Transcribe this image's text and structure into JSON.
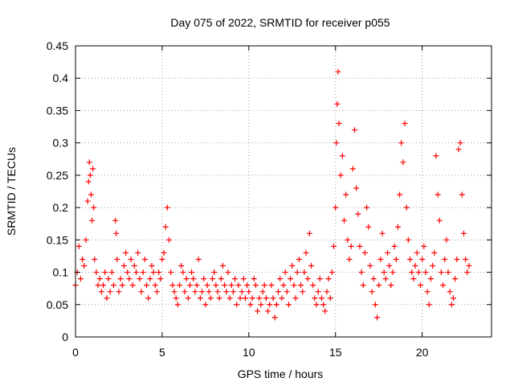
{
  "chart_data": {
    "type": "scatter",
    "title": "Day 075 of 2022, SRMTID for receiver p055",
    "xlabel": "GPS time / hours",
    "ylabel": "SRMTID / TECUs",
    "xlim": [
      0,
      24
    ],
    "ylim": [
      0,
      0.45
    ],
    "xticks": [
      0,
      5,
      10,
      15,
      20
    ],
    "xtick_labels": [
      "0",
      "5",
      "10",
      "15",
      "20"
    ],
    "yticks": [
      0,
      0.05,
      0.1,
      0.15,
      0.2,
      0.25,
      0.3,
      0.35,
      0.4,
      0.45
    ],
    "ytick_labels": [
      "0",
      "0.05",
      "0.1",
      "0.15",
      "0.2",
      "0.25",
      "0.3",
      "0.35",
      "0.4",
      "0.45"
    ],
    "grid": true,
    "marker": "+",
    "color": "#ff0000",
    "series": [
      {
        "name": "p055",
        "x": [
          0.0,
          0.1,
          0.2,
          0.3,
          0.4,
          0.5,
          0.6,
          0.7,
          0.75,
          0.8,
          0.85,
          0.9,
          0.95,
          1.0,
          1.05,
          1.1,
          1.2,
          1.3,
          1.4,
          1.5,
          1.6,
          1.7,
          1.8,
          1.9,
          2.0,
          2.1,
          2.2,
          2.3,
          2.35,
          2.4,
          2.5,
          2.6,
          2.7,
          2.8,
          2.9,
          3.0,
          3.1,
          3.2,
          3.3,
          3.4,
          3.5,
          3.6,
          3.7,
          3.8,
          3.9,
          4.0,
          4.1,
          4.2,
          4.3,
          4.4,
          4.5,
          4.6,
          4.7,
          4.8,
          4.9,
          5.0,
          5.1,
          5.2,
          5.3,
          5.4,
          5.5,
          5.6,
          5.7,
          5.8,
          5.9,
          6.0,
          6.1,
          6.2,
          6.3,
          6.4,
          6.5,
          6.6,
          6.7,
          6.8,
          6.9,
          7.0,
          7.1,
          7.2,
          7.3,
          7.4,
          7.5,
          7.6,
          7.7,
          7.8,
          7.9,
          8.0,
          8.1,
          8.2,
          8.3,
          8.4,
          8.5,
          8.6,
          8.7,
          8.8,
          8.9,
          9.0,
          9.1,
          9.2,
          9.3,
          9.4,
          9.5,
          9.6,
          9.7,
          9.8,
          9.9,
          10.0,
          10.1,
          10.2,
          10.3,
          10.4,
          10.5,
          10.6,
          10.7,
          10.8,
          10.9,
          11.0,
          11.1,
          11.2,
          11.3,
          11.4,
          11.5,
          11.6,
          11.7,
          11.8,
          11.9,
          12.0,
          12.1,
          12.2,
          12.3,
          12.4,
          12.5,
          12.6,
          12.7,
          12.8,
          12.9,
          13.0,
          13.1,
          13.2,
          13.3,
          13.4,
          13.5,
          13.6,
          13.7,
          13.8,
          13.9,
          14.0,
          14.1,
          14.2,
          14.3,
          14.4,
          14.5,
          14.6,
          14.7,
          14.8,
          14.9,
          15.0,
          15.05,
          15.1,
          15.15,
          15.2,
          15.3,
          15.4,
          15.5,
          15.6,
          15.7,
          15.8,
          15.9,
          16.0,
          16.1,
          16.2,
          16.3,
          16.4,
          16.5,
          16.6,
          16.7,
          16.8,
          16.9,
          17.0,
          17.1,
          17.2,
          17.3,
          17.4,
          17.5,
          17.6,
          17.7,
          17.8,
          17.9,
          18.0,
          18.1,
          18.2,
          18.3,
          18.4,
          18.5,
          18.6,
          18.7,
          18.8,
          18.9,
          19.0,
          19.1,
          19.2,
          19.3,
          19.4,
          19.5,
          19.6,
          19.7,
          19.8,
          19.9,
          20.0,
          20.1,
          20.2,
          20.3,
          20.4,
          20.5,
          20.6,
          20.7,
          20.8,
          20.9,
          21.0,
          21.1,
          21.2,
          21.3,
          21.4,
          21.5,
          21.6,
          21.7,
          21.8,
          21.9,
          22.0,
          22.1,
          22.2,
          22.3,
          22.4,
          22.5,
          22.6,
          22.7
        ],
        "y": [
          0.08,
          0.1,
          0.14,
          0.09,
          0.12,
          0.11,
          0.15,
          0.21,
          0.24,
          0.27,
          0.25,
          0.22,
          0.18,
          0.26,
          0.2,
          0.12,
          0.1,
          0.08,
          0.09,
          0.07,
          0.08,
          0.1,
          0.06,
          0.09,
          0.07,
          0.1,
          0.08,
          0.18,
          0.16,
          0.12,
          0.07,
          0.09,
          0.08,
          0.11,
          0.13,
          0.1,
          0.09,
          0.12,
          0.08,
          0.11,
          0.1,
          0.13,
          0.09,
          0.07,
          0.1,
          0.12,
          0.08,
          0.06,
          0.09,
          0.11,
          0.1,
          0.08,
          0.07,
          0.1,
          0.09,
          0.12,
          0.13,
          0.17,
          0.2,
          0.15,
          0.1,
          0.08,
          0.07,
          0.06,
          0.05,
          0.08,
          0.11,
          0.1,
          0.07,
          0.09,
          0.06,
          0.08,
          0.1,
          0.09,
          0.07,
          0.08,
          0.12,
          0.06,
          0.07,
          0.09,
          0.05,
          0.08,
          0.07,
          0.06,
          0.09,
          0.1,
          0.08,
          0.07,
          0.06,
          0.09,
          0.11,
          0.08,
          0.07,
          0.1,
          0.06,
          0.08,
          0.07,
          0.09,
          0.05,
          0.08,
          0.06,
          0.07,
          0.09,
          0.06,
          0.08,
          0.07,
          0.05,
          0.06,
          0.09,
          0.08,
          0.04,
          0.06,
          0.05,
          0.07,
          0.08,
          0.06,
          0.04,
          0.05,
          0.08,
          0.06,
          0.03,
          0.05,
          0.07,
          0.09,
          0.06,
          0.08,
          0.1,
          0.07,
          0.05,
          0.09,
          0.11,
          0.08,
          0.06,
          0.1,
          0.12,
          0.08,
          0.07,
          0.1,
          0.13,
          0.09,
          0.16,
          0.11,
          0.08,
          0.06,
          0.05,
          0.07,
          0.09,
          0.06,
          0.05,
          0.04,
          0.07,
          0.09,
          0.06,
          0.1,
          0.14,
          0.2,
          0.3,
          0.36,
          0.41,
          0.33,
          0.25,
          0.28,
          0.18,
          0.22,
          0.15,
          0.12,
          0.14,
          0.26,
          0.32,
          0.23,
          0.19,
          0.14,
          0.1,
          0.08,
          0.13,
          0.2,
          0.17,
          0.11,
          0.07,
          0.09,
          0.05,
          0.03,
          0.08,
          0.12,
          0.16,
          0.1,
          0.09,
          0.13,
          0.11,
          0.08,
          0.1,
          0.14,
          0.12,
          0.17,
          0.22,
          0.3,
          0.27,
          0.33,
          0.2,
          0.15,
          0.12,
          0.1,
          0.09,
          0.11,
          0.13,
          0.1,
          0.08,
          0.12,
          0.14,
          0.1,
          0.07,
          0.05,
          0.09,
          0.11,
          0.13,
          0.28,
          0.22,
          0.18,
          0.1,
          0.08,
          0.12,
          0.15,
          0.1,
          0.07,
          0.05,
          0.06,
          0.09,
          0.12,
          0.29,
          0.3,
          0.22,
          0.16,
          0.12,
          0.1,
          0.11
        ]
      }
    ]
  }
}
